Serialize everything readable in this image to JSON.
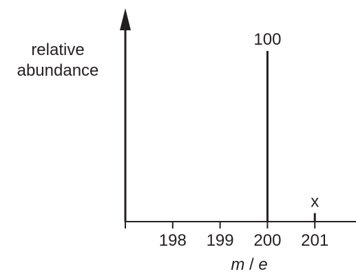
{
  "chart_data": {
    "type": "bar",
    "title": "",
    "ylabel_lines": [
      "relative",
      "abundance"
    ],
    "xlabel": {
      "m": "m",
      "slash": "/",
      "e": "e"
    },
    "x_ticks": [
      "198",
      "199",
      "200",
      "201"
    ],
    "xlim": [
      197,
      202
    ],
    "ylim": [
      0,
      100
    ],
    "series": [
      {
        "values": [
          {
            "x": 200,
            "y": 100,
            "label": "100"
          },
          {
            "x": 201,
            "y": 5,
            "label": "x"
          }
        ]
      }
    ],
    "grid": false,
    "legend": "none",
    "colors": {
      "ink": "#231f20",
      "background": "#ffffff"
    }
  }
}
